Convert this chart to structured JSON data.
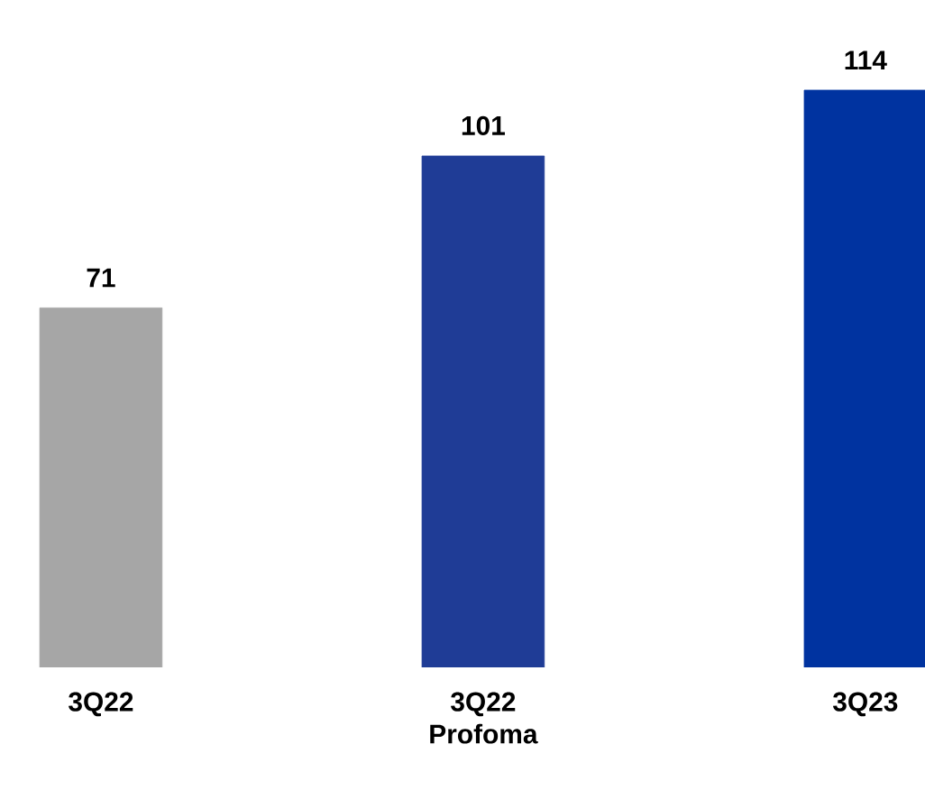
{
  "chart_data": {
    "type": "bar",
    "categories": [
      "3Q22",
      "3Q22 Profoma",
      "3Q23"
    ],
    "values": [
      71,
      101,
      114
    ],
    "colors": [
      "#a6a6a6",
      "#1f3c96",
      "#0033a0"
    ],
    "data_labels": true
  }
}
